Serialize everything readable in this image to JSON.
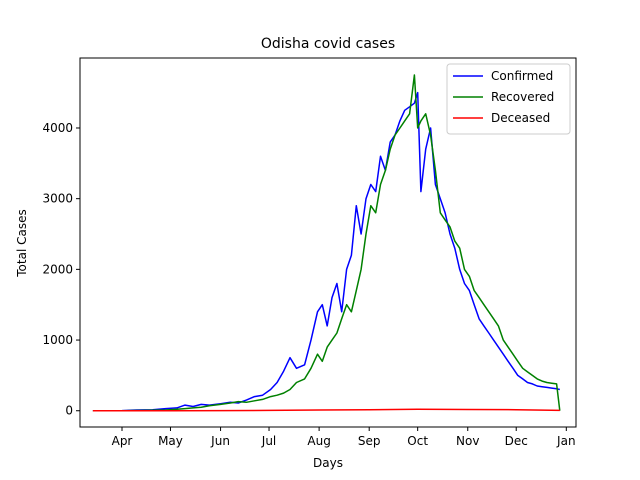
{
  "chart_data": {
    "type": "line",
    "title": "Odisha covid cases",
    "xlabel": "Days",
    "ylabel": "Total Cases",
    "x_ticks": [
      {
        "label": "Apr",
        "date": "2020-04-01"
      },
      {
        "label": "May",
        "date": "2020-05-01"
      },
      {
        "label": "Jun",
        "date": "2020-06-01"
      },
      {
        "label": "Jul",
        "date": "2020-07-01"
      },
      {
        "label": "Aug",
        "date": "2020-08-01"
      },
      {
        "label": "Sep",
        "date": "2020-09-01"
      },
      {
        "label": "Oct",
        "date": "2020-10-01"
      },
      {
        "label": "Nov",
        "date": "2020-11-01"
      },
      {
        "label": "Dec",
        "date": "2020-12-01"
      },
      {
        "label": "Jan",
        "date": "2021-01-01"
      }
    ],
    "y_ticks": [
      0,
      1000,
      2000,
      3000,
      4000
    ],
    "xlim": [
      "2020-03-06",
      "2021-01-07"
    ],
    "ylim": [
      -230,
      4990
    ],
    "grid": false,
    "legend_position": "top-right",
    "series": [
      {
        "name": "Confirmed",
        "color": "#0000ff",
        "points": [
          [
            "2020-03-14",
            0
          ],
          [
            "2020-04-01",
            2
          ],
          [
            "2020-04-10",
            10
          ],
          [
            "2020-04-20",
            15
          ],
          [
            "2020-04-28",
            30
          ],
          [
            "2020-05-05",
            40
          ],
          [
            "2020-05-10",
            80
          ],
          [
            "2020-05-15",
            60
          ],
          [
            "2020-05-20",
            90
          ],
          [
            "2020-05-25",
            80
          ],
          [
            "2020-06-01",
            100
          ],
          [
            "2020-06-07",
            120
          ],
          [
            "2020-06-12",
            110
          ],
          [
            "2020-06-17",
            150
          ],
          [
            "2020-06-22",
            200
          ],
          [
            "2020-06-27",
            220
          ],
          [
            "2020-07-02",
            300
          ],
          [
            "2020-07-06",
            400
          ],
          [
            "2020-07-10",
            560
          ],
          [
            "2020-07-14",
            750
          ],
          [
            "2020-07-18",
            600
          ],
          [
            "2020-07-23",
            650
          ],
          [
            "2020-07-27",
            1000
          ],
          [
            "2020-07-31",
            1400
          ],
          [
            "2020-08-03",
            1500
          ],
          [
            "2020-08-06",
            1200
          ],
          [
            "2020-08-09",
            1600
          ],
          [
            "2020-08-12",
            1800
          ],
          [
            "2020-08-15",
            1400
          ],
          [
            "2020-08-18",
            2000
          ],
          [
            "2020-08-21",
            2200
          ],
          [
            "2020-08-24",
            2900
          ],
          [
            "2020-08-27",
            2500
          ],
          [
            "2020-08-30",
            3000
          ],
          [
            "2020-09-02",
            3200
          ],
          [
            "2020-09-05",
            3100
          ],
          [
            "2020-09-08",
            3600
          ],
          [
            "2020-09-11",
            3400
          ],
          [
            "2020-09-14",
            3800
          ],
          [
            "2020-09-17",
            3900
          ],
          [
            "2020-09-20",
            4100
          ],
          [
            "2020-09-23",
            4250
          ],
          [
            "2020-09-26",
            4300
          ],
          [
            "2020-09-29",
            4350
          ],
          [
            "2020-10-01",
            4500
          ],
          [
            "2020-10-03",
            3100
          ],
          [
            "2020-10-06",
            3700
          ],
          [
            "2020-10-09",
            4000
          ],
          [
            "2020-10-12",
            3200
          ],
          [
            "2020-10-15",
            3000
          ],
          [
            "2020-10-18",
            2800
          ],
          [
            "2020-10-21",
            2500
          ],
          [
            "2020-10-24",
            2300
          ],
          [
            "2020-10-27",
            2000
          ],
          [
            "2020-10-30",
            1800
          ],
          [
            "2020-11-02",
            1700
          ],
          [
            "2020-11-05",
            1500
          ],
          [
            "2020-11-08",
            1300
          ],
          [
            "2020-11-11",
            1200
          ],
          [
            "2020-11-14",
            1100
          ],
          [
            "2020-11-17",
            1000
          ],
          [
            "2020-11-20",
            900
          ],
          [
            "2020-11-23",
            800
          ],
          [
            "2020-11-26",
            700
          ],
          [
            "2020-11-29",
            600
          ],
          [
            "2020-12-02",
            500
          ],
          [
            "2020-12-05",
            450
          ],
          [
            "2020-12-08",
            400
          ],
          [
            "2020-12-11",
            380
          ],
          [
            "2020-12-14",
            350
          ],
          [
            "2020-12-17",
            340
          ],
          [
            "2020-12-20",
            330
          ],
          [
            "2020-12-23",
            320
          ],
          [
            "2020-12-26",
            310
          ],
          [
            "2020-12-28",
            300
          ]
        ]
      },
      {
        "name": "Recovered",
        "color": "#008000",
        "points": [
          [
            "2020-03-14",
            0
          ],
          [
            "2020-04-01",
            0
          ],
          [
            "2020-04-15",
            5
          ],
          [
            "2020-04-28",
            10
          ],
          [
            "2020-05-05",
            20
          ],
          [
            "2020-05-10",
            30
          ],
          [
            "2020-05-15",
            40
          ],
          [
            "2020-05-20",
            50
          ],
          [
            "2020-05-25",
            70
          ],
          [
            "2020-06-01",
            90
          ],
          [
            "2020-06-07",
            110
          ],
          [
            "2020-06-12",
            130
          ],
          [
            "2020-06-17",
            120
          ],
          [
            "2020-06-22",
            140
          ],
          [
            "2020-06-27",
            160
          ],
          [
            "2020-07-02",
            200
          ],
          [
            "2020-07-06",
            220
          ],
          [
            "2020-07-10",
            250
          ],
          [
            "2020-07-14",
            300
          ],
          [
            "2020-07-18",
            400
          ],
          [
            "2020-07-23",
            450
          ],
          [
            "2020-07-27",
            600
          ],
          [
            "2020-07-31",
            800
          ],
          [
            "2020-08-03",
            700
          ],
          [
            "2020-08-06",
            900
          ],
          [
            "2020-08-09",
            1000
          ],
          [
            "2020-08-12",
            1100
          ],
          [
            "2020-08-15",
            1300
          ],
          [
            "2020-08-18",
            1500
          ],
          [
            "2020-08-21",
            1400
          ],
          [
            "2020-08-24",
            1700
          ],
          [
            "2020-08-27",
            2000
          ],
          [
            "2020-08-30",
            2500
          ],
          [
            "2020-09-02",
            2900
          ],
          [
            "2020-09-05",
            2800
          ],
          [
            "2020-09-08",
            3200
          ],
          [
            "2020-09-11",
            3400
          ],
          [
            "2020-09-14",
            3700
          ],
          [
            "2020-09-17",
            3900
          ],
          [
            "2020-09-20",
            4000
          ],
          [
            "2020-09-23",
            4100
          ],
          [
            "2020-09-26",
            4200
          ],
          [
            "2020-09-29",
            4750
          ],
          [
            "2020-10-01",
            4000
          ],
          [
            "2020-10-03",
            4100
          ],
          [
            "2020-10-06",
            4200
          ],
          [
            "2020-10-09",
            3900
          ],
          [
            "2020-10-12",
            3400
          ],
          [
            "2020-10-15",
            2800
          ],
          [
            "2020-10-18",
            2700
          ],
          [
            "2020-10-21",
            2600
          ],
          [
            "2020-10-24",
            2400
          ],
          [
            "2020-10-27",
            2300
          ],
          [
            "2020-10-30",
            2000
          ],
          [
            "2020-11-02",
            1900
          ],
          [
            "2020-11-05",
            1700
          ],
          [
            "2020-11-08",
            1600
          ],
          [
            "2020-11-11",
            1500
          ],
          [
            "2020-11-14",
            1400
          ],
          [
            "2020-11-17",
            1300
          ],
          [
            "2020-11-20",
            1200
          ],
          [
            "2020-11-23",
            1000
          ],
          [
            "2020-11-26",
            900
          ],
          [
            "2020-11-29",
            800
          ],
          [
            "2020-12-02",
            700
          ],
          [
            "2020-12-05",
            600
          ],
          [
            "2020-12-08",
            550
          ],
          [
            "2020-12-11",
            500
          ],
          [
            "2020-12-14",
            450
          ],
          [
            "2020-12-17",
            420
          ],
          [
            "2020-12-20",
            400
          ],
          [
            "2020-12-23",
            390
          ],
          [
            "2020-12-26",
            380
          ],
          [
            "2020-12-28",
            0
          ]
        ]
      },
      {
        "name": "Deceased",
        "color": "#ff0000",
        "points": [
          [
            "2020-03-14",
            0
          ],
          [
            "2020-04-01",
            0
          ],
          [
            "2020-05-01",
            0
          ],
          [
            "2020-06-01",
            2
          ],
          [
            "2020-07-01",
            5
          ],
          [
            "2020-08-01",
            10
          ],
          [
            "2020-09-01",
            15
          ],
          [
            "2020-10-01",
            20
          ],
          [
            "2020-11-01",
            18
          ],
          [
            "2020-12-01",
            15
          ],
          [
            "2020-12-28",
            5
          ]
        ]
      }
    ]
  }
}
